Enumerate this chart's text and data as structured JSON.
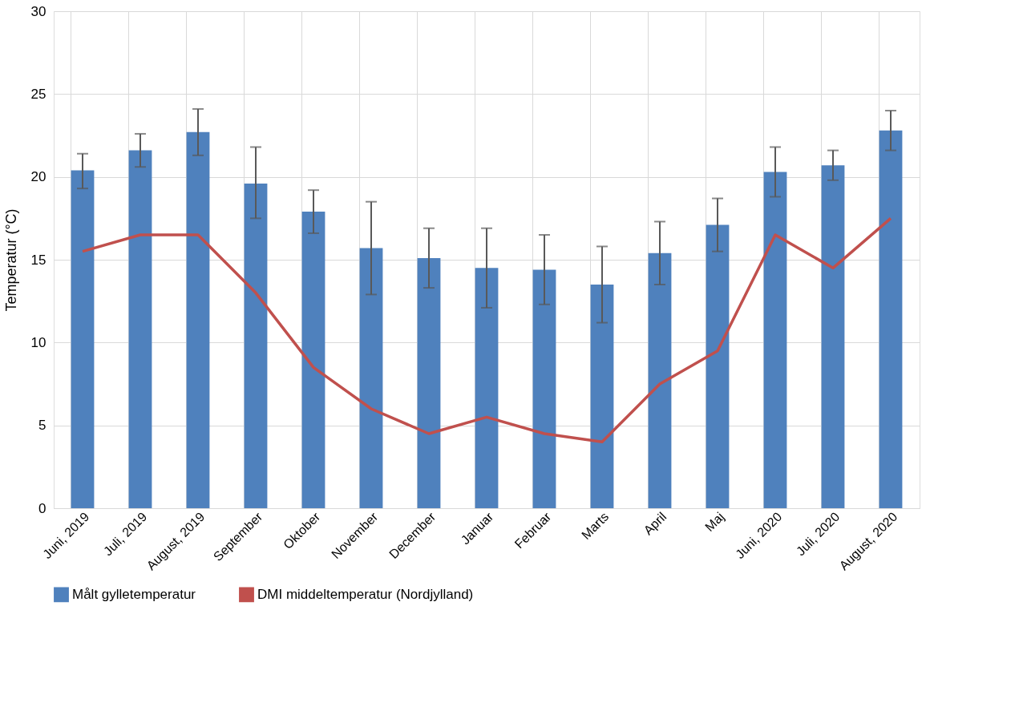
{
  "chart_data": {
    "type": "bar",
    "ylabel": "Temperatur (°C)",
    "categories": [
      "Juni, 2019",
      "Juli, 2019",
      "August, 2019",
      "September",
      "Oktober",
      "November",
      "December",
      "Januar",
      "Februar",
      "Marts",
      "April",
      "Maj",
      "Juni, 2020",
      "Juli, 2020",
      "August, 2020"
    ],
    "series": [
      {
        "name": "Målt gylletemperatur",
        "color": "#4f81bd",
        "values": [
          20.4,
          21.6,
          22.7,
          19.6,
          17.9,
          15.7,
          15.1,
          14.5,
          14.4,
          13.5,
          15.4,
          17.1,
          20.3,
          20.7,
          22.8
        ],
        "errors": [
          [
            19.3,
            21.4
          ],
          [
            20.6,
            22.6
          ],
          [
            21.3,
            24.1
          ],
          [
            17.5,
            21.8
          ],
          [
            16.6,
            19.2
          ],
          [
            12.9,
            18.5
          ],
          [
            13.3,
            16.9
          ],
          [
            12.1,
            16.9
          ],
          [
            12.3,
            16.5
          ],
          [
            11.2,
            15.8
          ],
          [
            13.5,
            17.3
          ],
          [
            15.5,
            18.7
          ],
          [
            18.8,
            21.8
          ],
          [
            19.8,
            21.6
          ],
          [
            21.6,
            24.0
          ]
        ]
      },
      {
        "name": "DMI middeltemperatur (Nordjylland)",
        "type": "line",
        "color": "#c0504d",
        "values": [
          15.5,
          16.5,
          16.5,
          13.0,
          8.5,
          6.0,
          4.5,
          5.5,
          4.5,
          4.0,
          7.5,
          9.5,
          16.5,
          14.5,
          17.5
        ]
      }
    ],
    "ylim": [
      0,
      30
    ],
    "yticks": [
      0,
      5,
      10,
      15,
      20,
      25,
      30
    ],
    "grid": true,
    "legend": "bottom"
  }
}
